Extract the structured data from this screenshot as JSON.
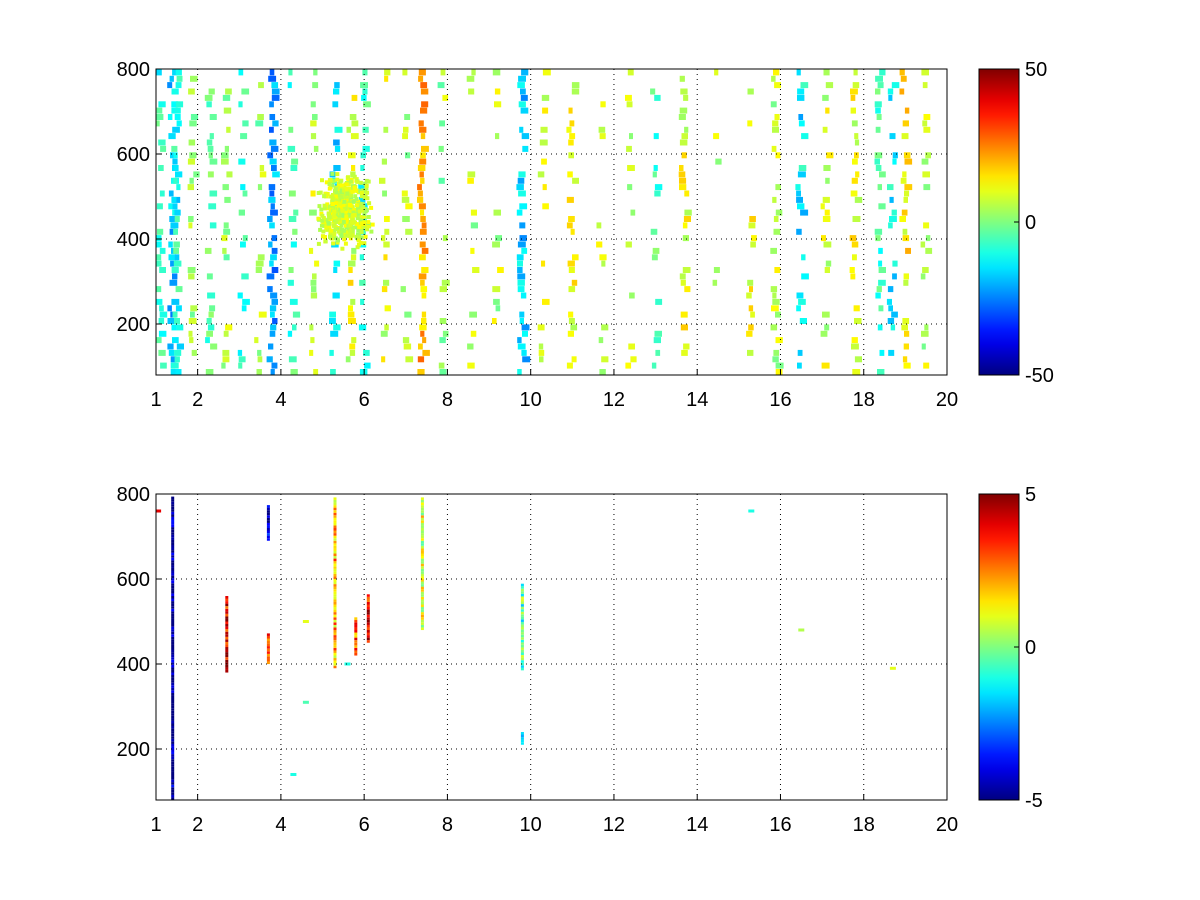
{
  "chart_data": [
    {
      "type": "heatmap",
      "title": "",
      "xlabel": "",
      "ylabel": "",
      "xlim": [
        1,
        20
      ],
      "ylim": [
        80,
        800
      ],
      "x_ticks": [
        1,
        2,
        4,
        6,
        8,
        10,
        12,
        14,
        16,
        18,
        20
      ],
      "x_tick_labels": [
        "1",
        "2",
        "4",
        "6",
        "8",
        "10",
        "12",
        "14",
        "16",
        "18",
        "20"
      ],
      "y_ticks": [
        200,
        400,
        600,
        800
      ],
      "y_tick_labels": [
        "200",
        "400",
        "600",
        "800"
      ],
      "grid": true,
      "colormap": "jet",
      "colorbar": {
        "range": [
          -50,
          50
        ],
        "ticks": [
          50,
          0,
          -50
        ],
        "tick_labels": [
          "50",
          "0",
          "-50"
        ],
        "position": "right"
      },
      "background_color": "#ffffff",
      "stripes": [
        {
          "x": 1.1,
          "value": -8,
          "density": 0.5
        },
        {
          "x": 1.4,
          "value": -18,
          "density": 0.7
        },
        {
          "x": 1.5,
          "value": -10,
          "density": 0.8
        },
        {
          "x": 1.9,
          "value": 2,
          "density": 0.45
        },
        {
          "x": 2.3,
          "value": -5,
          "density": 0.45
        },
        {
          "x": 2.7,
          "value": 4,
          "density": 0.4
        },
        {
          "x": 3.1,
          "value": -6,
          "density": 0.35
        },
        {
          "x": 3.5,
          "value": 3,
          "density": 0.3
        },
        {
          "x": 3.8,
          "value": -22,
          "density": 0.85
        },
        {
          "x": 4.3,
          "value": -6,
          "density": 0.35
        },
        {
          "x": 4.8,
          "value": 6,
          "density": 0.45
        },
        {
          "x": 5.3,
          "value": -15,
          "density": 0.55
        },
        {
          "x": 5.7,
          "value": 10,
          "density": 0.4
        },
        {
          "x": 6.0,
          "value": -8,
          "density": 0.45
        },
        {
          "x": 6.5,
          "value": 8,
          "density": 0.3
        },
        {
          "x": 7.0,
          "value": 6,
          "density": 0.3
        },
        {
          "x": 7.4,
          "value": 20,
          "density": 0.75
        },
        {
          "x": 7.9,
          "value": 4,
          "density": 0.25
        },
        {
          "x": 8.6,
          "value": 6,
          "density": 0.25
        },
        {
          "x": 9.2,
          "value": 6,
          "density": 0.25
        },
        {
          "x": 9.8,
          "value": -18,
          "density": 0.75
        },
        {
          "x": 10.3,
          "value": 8,
          "density": 0.35
        },
        {
          "x": 11.0,
          "value": 10,
          "density": 0.5
        },
        {
          "x": 11.7,
          "value": 6,
          "density": 0.25
        },
        {
          "x": 12.4,
          "value": 8,
          "density": 0.25
        },
        {
          "x": 13.0,
          "value": -6,
          "density": 0.3
        },
        {
          "x": 13.7,
          "value": 10,
          "density": 0.45
        },
        {
          "x": 14.5,
          "value": 6,
          "density": 0.15
        },
        {
          "x": 15.3,
          "value": 10,
          "density": 0.25
        },
        {
          "x": 15.9,
          "value": 6,
          "density": 0.55
        },
        {
          "x": 16.5,
          "value": -14,
          "density": 0.55
        },
        {
          "x": 17.1,
          "value": 8,
          "density": 0.45
        },
        {
          "x": 17.8,
          "value": 10,
          "density": 0.5
        },
        {
          "x": 18.4,
          "value": -6,
          "density": 0.45
        },
        {
          "x": 18.7,
          "value": -12,
          "density": 0.55
        },
        {
          "x": 19.0,
          "value": 14,
          "density": 0.65
        },
        {
          "x": 19.5,
          "value": 6,
          "density": 0.3
        }
      ],
      "clusters": [
        {
          "x": 5.5,
          "y": 470,
          "value": 8,
          "spread_x": 0.7,
          "spread_y": 90,
          "density": 0.8
        }
      ]
    },
    {
      "type": "heatmap",
      "title": "",
      "xlabel": "",
      "ylabel": "",
      "xlim": [
        1,
        20
      ],
      "ylim": [
        80,
        800
      ],
      "x_ticks": [
        1,
        2,
        4,
        6,
        8,
        10,
        12,
        14,
        16,
        18,
        20
      ],
      "x_tick_labels": [
        "1",
        "2",
        "4",
        "6",
        "8",
        "10",
        "12",
        "14",
        "16",
        "18",
        "20"
      ],
      "y_ticks": [
        200,
        400,
        600,
        800
      ],
      "y_tick_labels": [
        "200",
        "400",
        "600",
        "800"
      ],
      "grid": true,
      "colormap": "jet",
      "colorbar": {
        "range": [
          -5,
          5
        ],
        "ticks": [
          5,
          0,
          -5
        ],
        "tick_labels": [
          "5",
          "0",
          "-5"
        ],
        "position": "right"
      },
      "background_color": "#ffffff",
      "segments": [
        {
          "x": 1.4,
          "y0": 80,
          "y1": 790,
          "value": -5
        },
        {
          "x": 2.7,
          "y0": 380,
          "y1": 560,
          "value": 4
        },
        {
          "x": 3.7,
          "y0": 690,
          "y1": 770,
          "value": -4.5
        },
        {
          "x": 3.7,
          "y0": 400,
          "y1": 470,
          "value": 3.5
        },
        {
          "x": 5.3,
          "y0": 390,
          "y1": 790,
          "value": 2
        },
        {
          "x": 5.8,
          "y0": 420,
          "y1": 510,
          "value": 3
        },
        {
          "x": 6.1,
          "y0": 450,
          "y1": 560,
          "value": 4
        },
        {
          "x": 7.4,
          "y0": 480,
          "y1": 790,
          "value": 1
        },
        {
          "x": 9.8,
          "y0": 385,
          "y1": 585,
          "value": -0.5
        },
        {
          "x": 9.8,
          "y0": 210,
          "y1": 235,
          "value": -1.5
        }
      ],
      "points": [
        {
          "x": 1.05,
          "y": 760,
          "value": 4
        },
        {
          "x": 4.3,
          "y": 140,
          "value": -1
        },
        {
          "x": 4.6,
          "y": 500,
          "value": 1
        },
        {
          "x": 4.6,
          "y": 310,
          "value": -0.5
        },
        {
          "x": 5.6,
          "y": 400,
          "value": -1
        },
        {
          "x": 15.3,
          "y": 760,
          "value": -1
        },
        {
          "x": 16.5,
          "y": 480,
          "value": 0.5
        },
        {
          "x": 18.7,
          "y": 390,
          "value": 1
        }
      ]
    }
  ]
}
